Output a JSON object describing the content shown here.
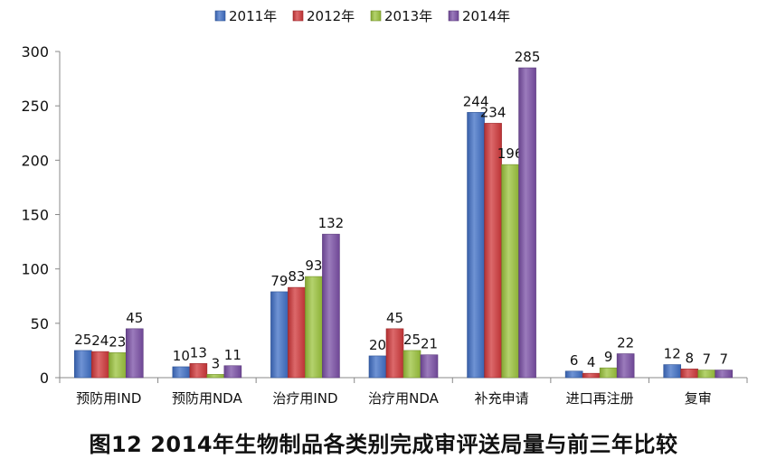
{
  "chart_data": {
    "type": "bar",
    "categories": [
      "预防用IND",
      "预防用NDA",
      "治疗用IND",
      "治疗用NDA",
      "补充申请",
      "进口再注册",
      "复审"
    ],
    "series": [
      {
        "name": "2011年",
        "color": "#3f6fc6",
        "values": [
          25,
          10,
          79,
          20,
          244,
          6,
          12
        ]
      },
      {
        "name": "2012年",
        "color": "#d0373a",
        "values": [
          24,
          13,
          83,
          45,
          234,
          4,
          8
        ]
      },
      {
        "name": "2013年",
        "color": "#9bc33c",
        "values": [
          23,
          3,
          93,
          25,
          196,
          9,
          7
        ]
      },
      {
        "name": "2014年",
        "color": "#7a4fa6",
        "values": [
          45,
          11,
          132,
          21,
          285,
          22,
          7
        ]
      }
    ],
    "yticks": [
      0,
      50,
      100,
      150,
      200,
      250,
      300
    ],
    "ylim": [
      0,
      300
    ],
    "grid": false,
    "legend_position": "top-center",
    "title": "图12 2014年生物制品各类别完成审评送局量与前三年比较"
  }
}
